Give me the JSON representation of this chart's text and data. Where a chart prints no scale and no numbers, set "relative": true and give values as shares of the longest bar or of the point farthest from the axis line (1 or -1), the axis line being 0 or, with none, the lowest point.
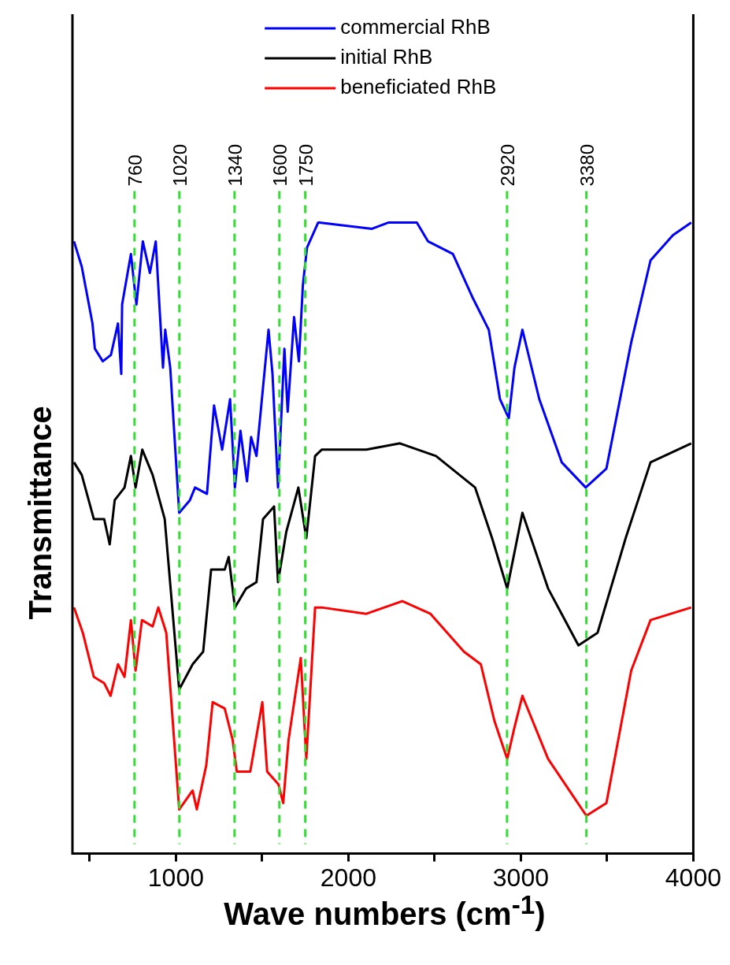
{
  "chart_data": {
    "type": "line",
    "xlabel": "Wave numbers (cm$^{-1}$)",
    "ylabel": "Transmittance",
    "relative": true,
    "legend": "top",
    "grid": false,
    "marker": "none",
    "line_style": "solid",
    "xlim": [
      400,
      4000
    ],
    "xticks": [
      {
        "value": 500,
        "label": null
      },
      1000,
      {
        "value": 1500,
        "label": null
      },
      2000,
      {
        "value": 2500,
        "label": null
      },
      3000,
      {
        "value": 3500,
        "label": null
      },
      4000
    ],
    "ref_lines": [
      {
        "axis": "x",
        "value": 760,
        "label": "760",
        "color": "#33dd33",
        "line_style": "dashed"
      },
      {
        "axis": "x",
        "value": 1020,
        "label": "1020",
        "color": "#33dd33",
        "line_style": "dashed"
      },
      {
        "axis": "x",
        "value": 1340,
        "label": "1340",
        "color": "#33dd33",
        "line_style": "dashed"
      },
      {
        "axis": "x",
        "value": 1600,
        "label": "1600",
        "color": "#33dd33",
        "line_style": "dashed"
      },
      {
        "axis": "x",
        "value": 1750,
        "label": "1750",
        "color": "#33dd33",
        "line_style": "dashed"
      },
      {
        "axis": "x",
        "value": 2920,
        "label": "2920",
        "color": "#33dd33",
        "line_style": "dashed"
      },
      {
        "axis": "x",
        "value": 3380,
        "label": "3380",
        "color": "#33dd33",
        "line_style": "dashed"
      }
    ],
    "series": [
      {
        "name": "commercial RhB",
        "color": "#0000ff",
        "x": [
          409,
          454,
          516,
          530,
          576,
          623,
          664,
          683,
          688,
          739,
          771,
          808,
          849,
          883,
          925,
          938,
          967,
          1019,
          1081,
          1111,
          1180,
          1221,
          1268,
          1314,
          1342,
          1374,
          1412,
          1436,
          1467,
          1537,
          1560,
          1592,
          1629,
          1648,
          1685,
          1713,
          1736,
          1760,
          1825,
          1831,
          2137,
          2234,
          2397,
          2462,
          2606,
          2722,
          2814,
          2879,
          2930,
          2963,
          3009,
          3107,
          3237,
          3376,
          3496,
          3640,
          3752,
          3882,
          3988
        ],
        "values": [
          0.97,
          0.93,
          0.84,
          0.8,
          0.78,
          0.79,
          0.84,
          0.76,
          0.87,
          0.95,
          0.87,
          0.97,
          0.92,
          0.97,
          0.77,
          0.83,
          0.77,
          0.54,
          0.56,
          0.58,
          0.57,
          0.71,
          0.64,
          0.72,
          0.58,
          0.67,
          0.59,
          0.66,
          0.63,
          0.83,
          0.76,
          0.58,
          0.8,
          0.7,
          0.85,
          0.78,
          0.9,
          0.96,
          1.0,
          1.0,
          0.99,
          1.0,
          1.0,
          0.97,
          0.95,
          0.88,
          0.83,
          0.72,
          0.69,
          0.77,
          0.83,
          0.72,
          0.62,
          0.58,
          0.61,
          0.81,
          0.94,
          0.98,
          1.0
        ]
      },
      {
        "name": "initial RhB",
        "color": "#000000",
        "x": [
          409,
          454,
          524,
          584,
          616,
          645,
          702,
          739,
          766,
          805,
          865,
          935,
          1019,
          1097,
          1158,
          1204,
          1283,
          1306,
          1342,
          1407,
          1467,
          1505,
          1569,
          1592,
          1640,
          1710,
          1756,
          1807,
          1845,
          2104,
          2299,
          2508,
          2735,
          2833,
          2921,
          3009,
          3158,
          3334,
          3445,
          3608,
          3752,
          3988
        ],
        "values": [
          0.62,
          0.6,
          0.53,
          0.53,
          0.49,
          0.56,
          0.58,
          0.63,
          0.58,
          0.64,
          0.6,
          0.53,
          0.26,
          0.3,
          0.32,
          0.45,
          0.45,
          0.47,
          0.39,
          0.42,
          0.43,
          0.53,
          0.55,
          0.43,
          0.51,
          0.58,
          0.5,
          0.63,
          0.64,
          0.64,
          0.65,
          0.63,
          0.58,
          0.5,
          0.42,
          0.54,
          0.42,
          0.33,
          0.35,
          0.5,
          0.62,
          0.65
        ]
      },
      {
        "name": "beneficiated RhB",
        "color": "#ff0000",
        "x": [
          409,
          460,
          524,
          584,
          621,
          664,
          702,
          739,
          766,
          803,
          865,
          898,
          944,
          1019,
          1097,
          1121,
          1176,
          1213,
          1283,
          1329,
          1353,
          1431,
          1501,
          1529,
          1594,
          1622,
          1653,
          1724,
          1756,
          1807,
          1845,
          2104,
          2313,
          2476,
          2670,
          2768,
          2847,
          2921,
          2963,
          3009,
          3158,
          3380,
          3496,
          3640,
          3752,
          3988
        ],
        "values": [
          0.39,
          0.35,
          0.28,
          0.27,
          0.25,
          0.3,
          0.28,
          0.37,
          0.29,
          0.37,
          0.36,
          0.39,
          0.35,
          0.07,
          0.1,
          0.07,
          0.14,
          0.24,
          0.23,
          0.18,
          0.13,
          0.13,
          0.24,
          0.13,
          0.11,
          0.08,
          0.18,
          0.31,
          0.15,
          0.39,
          0.39,
          0.38,
          0.4,
          0.38,
          0.32,
          0.3,
          0.21,
          0.15,
          0.2,
          0.25,
          0.15,
          0.06,
          0.08,
          0.29,
          0.37,
          0.39
        ]
      }
    ]
  }
}
